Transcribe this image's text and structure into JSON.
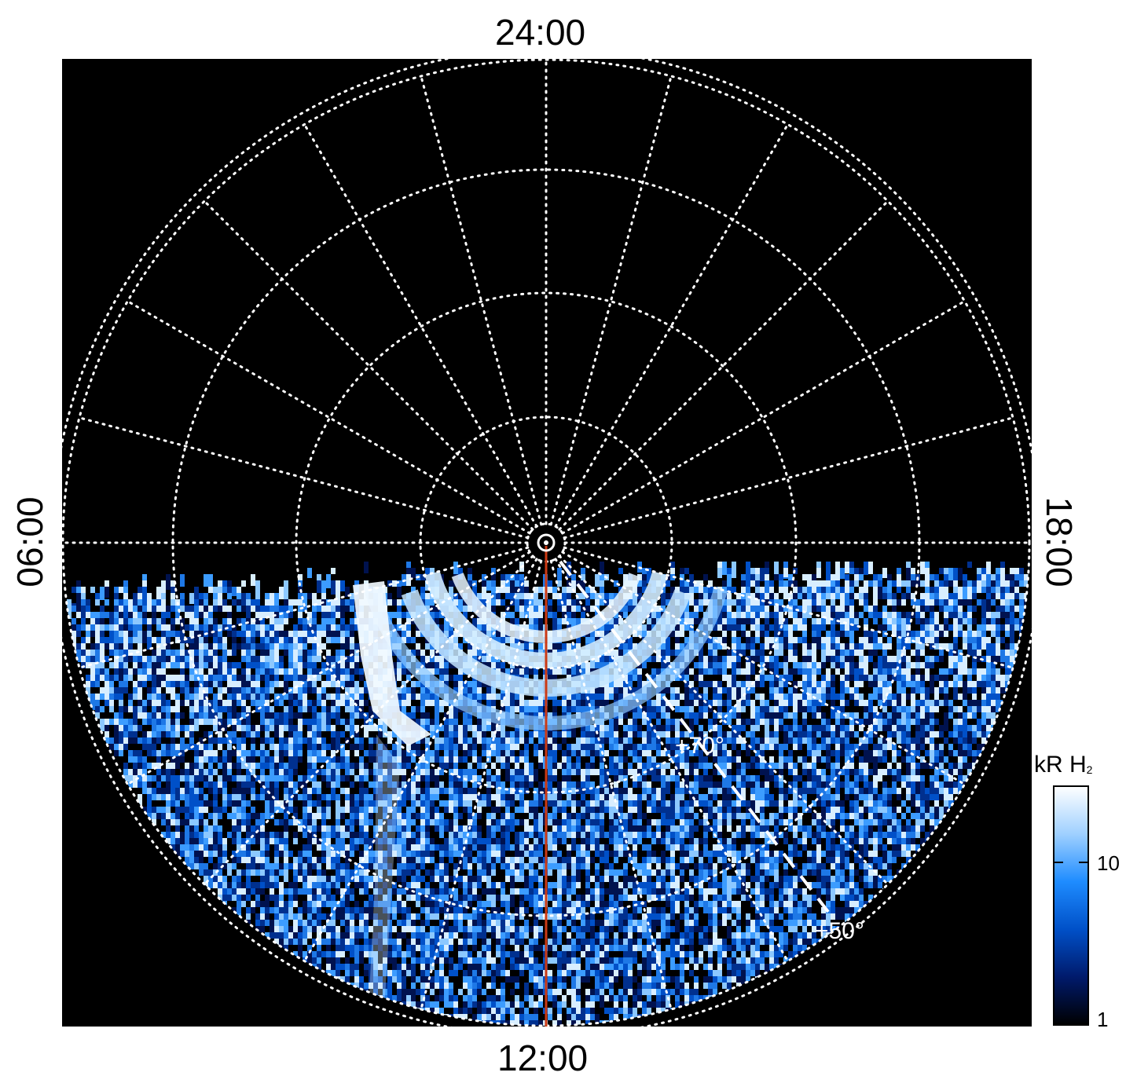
{
  "local_time_labels": {
    "top": "24:00",
    "bottom": "12:00",
    "left": "06:00",
    "right": "18:00"
  },
  "latitude_labels": {
    "inner": "+70°",
    "outer": "+50°"
  },
  "colorbar": {
    "title_main": "kR H",
    "title_sub": "2",
    "ticks": [
      "10",
      "1"
    ],
    "scale": "log",
    "colors": [
      "#000000",
      "#001a6b",
      "#0050c8",
      "#1e8cff",
      "#9fd0ff",
      "#ffffff"
    ]
  },
  "style": {
    "background": "#000000",
    "grid": "#ffffff",
    "meridian_line": "#cc3a14"
  }
}
